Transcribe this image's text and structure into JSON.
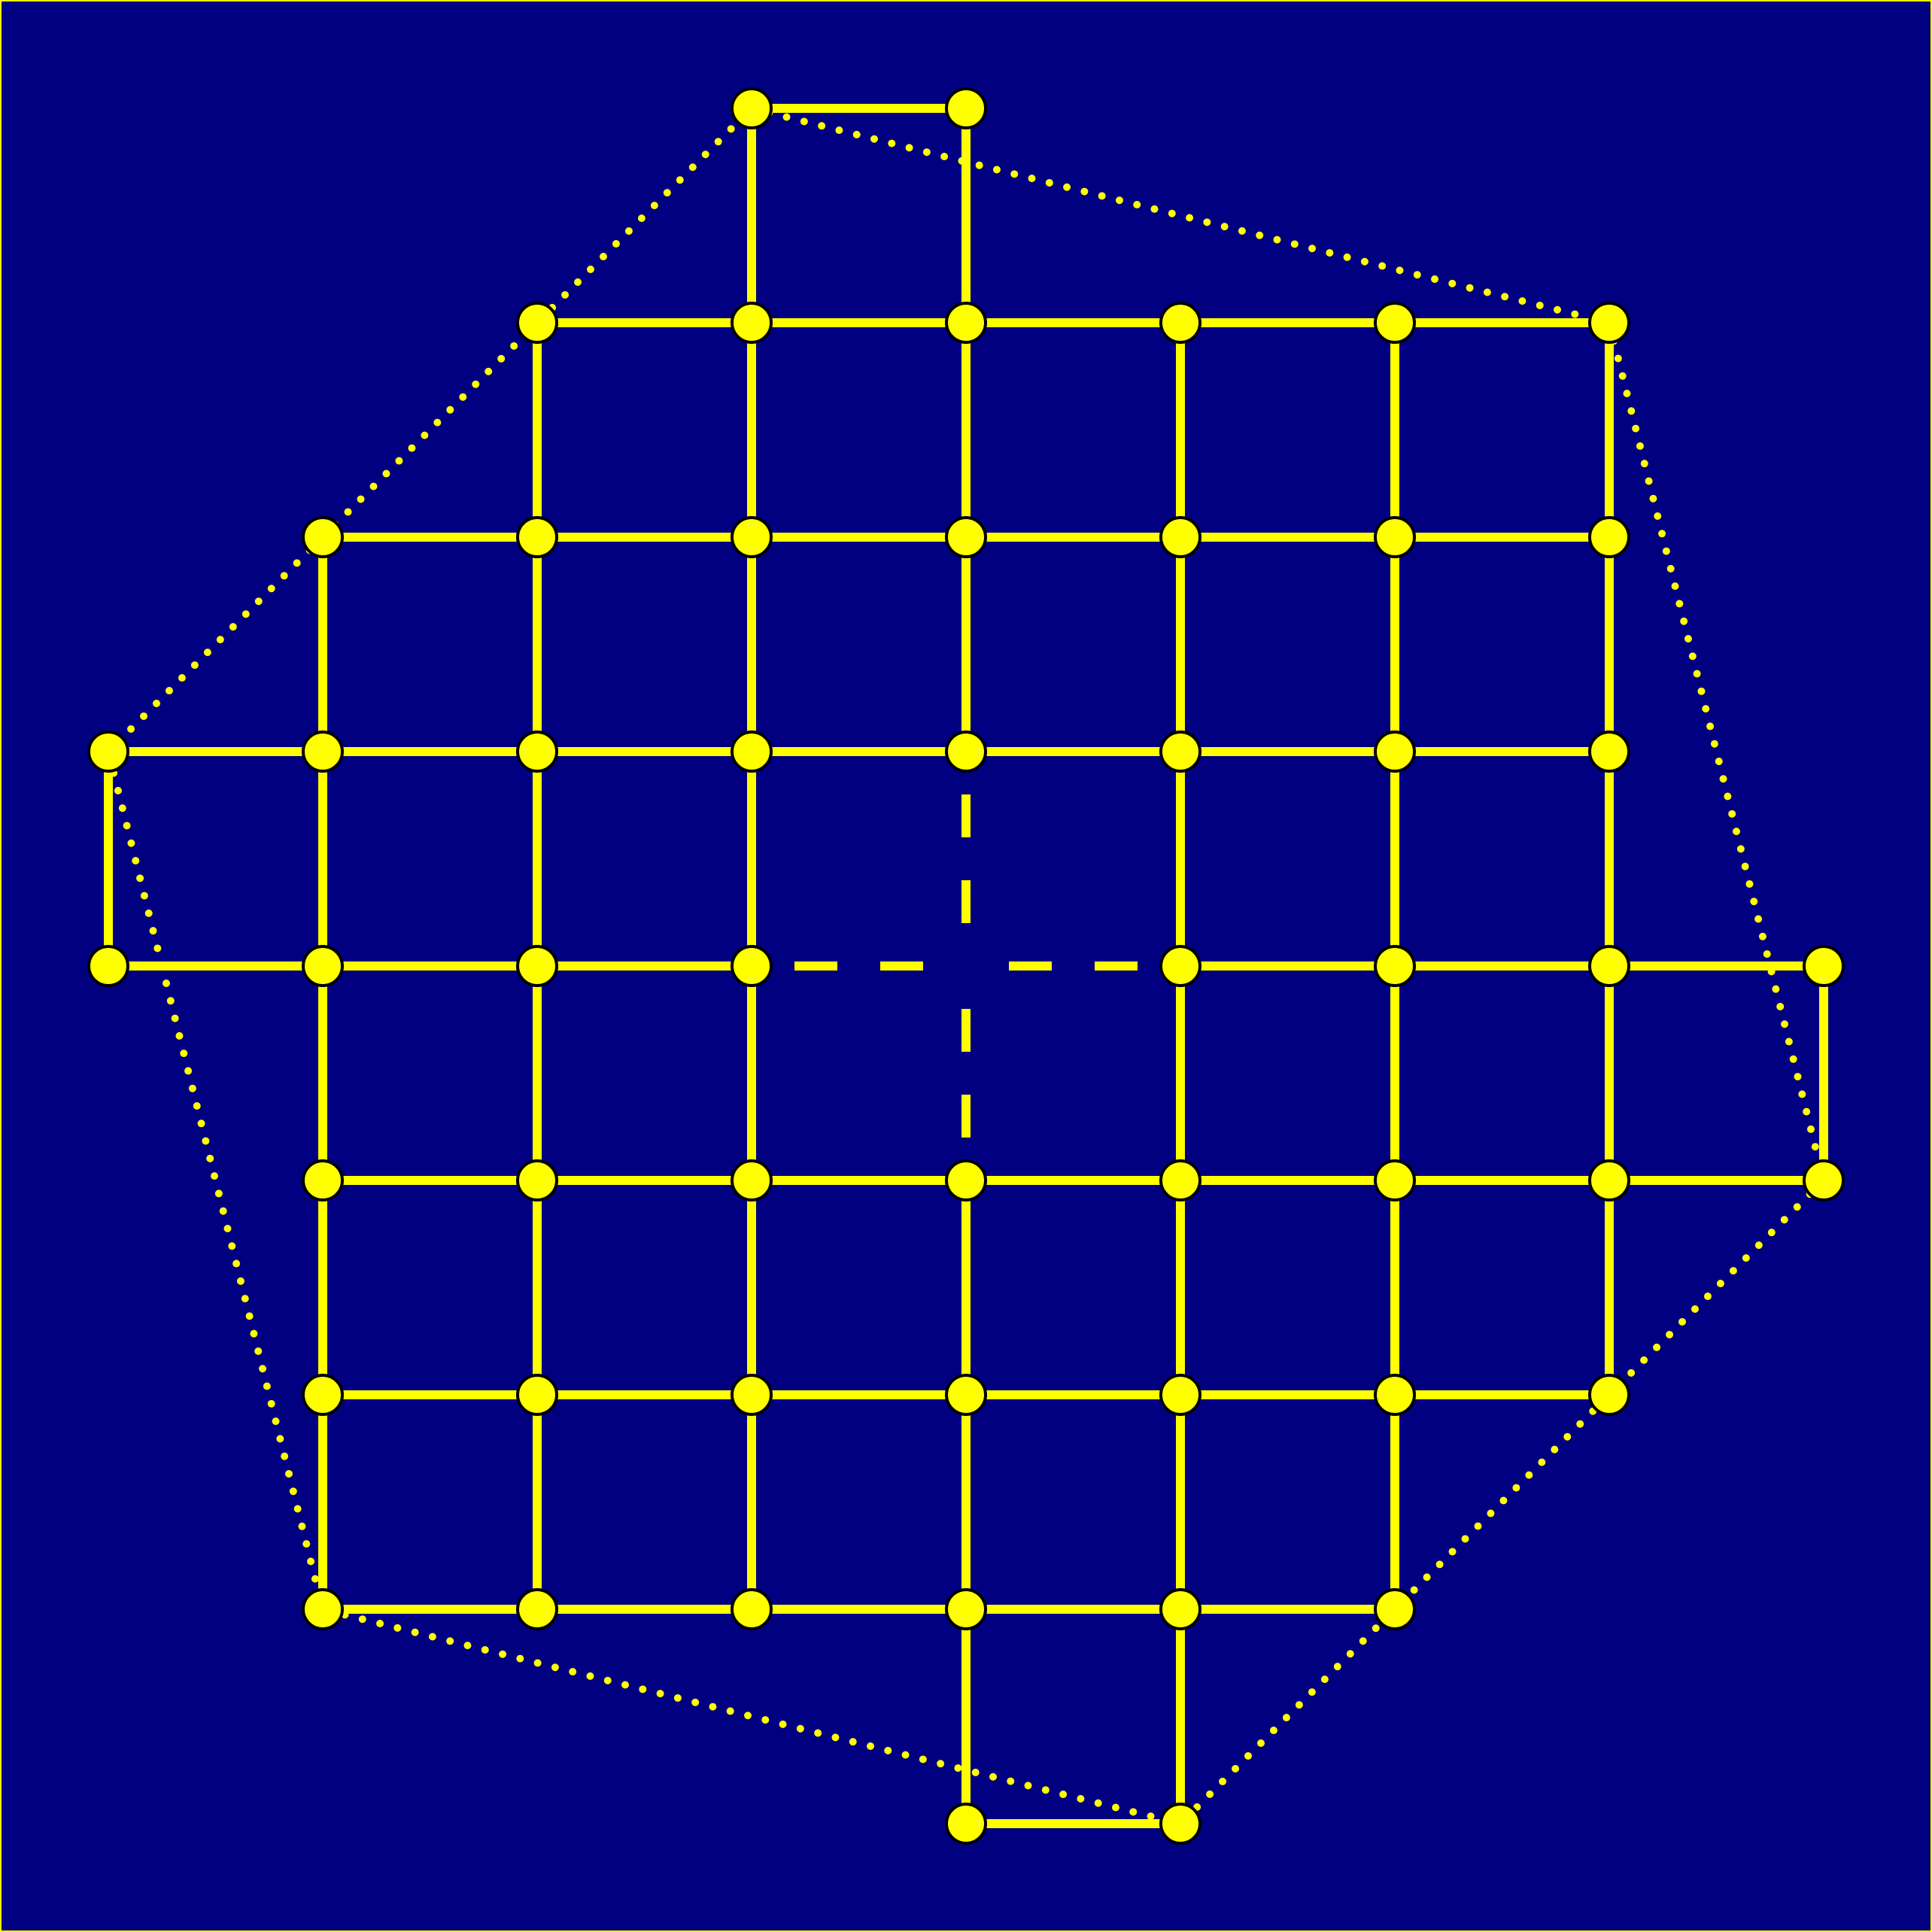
{
  "colors": {
    "background": "#000080",
    "line": "#FFFF00",
    "node_fill": "#FFFF00",
    "node_stroke": "#000000",
    "frame": "#FFFF00"
  },
  "grid": {
    "rows": [
      {
        "row": 0,
        "cols": [
          3,
          4
        ]
      },
      {
        "row": 1,
        "cols": [
          2,
          3,
          4,
          5,
          6,
          7
        ]
      },
      {
        "row": 2,
        "cols": [
          1,
          2,
          3,
          4,
          5,
          6,
          7
        ]
      },
      {
        "row": 3,
        "cols": [
          0,
          1,
          2,
          3,
          4,
          5,
          6,
          7
        ]
      },
      {
        "row": 4,
        "cols": [
          0,
          1,
          2,
          3,
          5,
          6,
          7,
          8
        ]
      },
      {
        "row": 5,
        "cols": [
          1,
          2,
          3,
          4,
          5,
          6,
          7,
          8
        ]
      },
      {
        "row": 6,
        "cols": [
          1,
          2,
          3,
          4,
          5,
          6,
          7
        ]
      },
      {
        "row": 7,
        "cols": [
          1,
          2,
          3,
          4,
          5,
          6
        ]
      },
      {
        "row": 8,
        "cols": [
          4,
          5
        ]
      }
    ],
    "missing_center": {
      "row": 4,
      "col": 4
    },
    "dashed_arms": [
      {
        "from": [
          4,
          3
        ],
        "to": [
          4,
          4
        ]
      },
      {
        "from": [
          4,
          4
        ],
        "to": [
          4,
          5
        ]
      },
      {
        "from": [
          3,
          4
        ],
        "to": [
          4,
          4
        ]
      },
      {
        "from": [
          4,
          4
        ],
        "to": [
          5,
          4
        ]
      }
    ],
    "dotted_outline": [
      [
        0,
        3
      ],
      [
        1,
        7
      ],
      [
        5,
        8
      ],
      [
        8,
        5
      ],
      [
        7,
        1
      ],
      [
        3,
        0
      ]
    ]
  }
}
